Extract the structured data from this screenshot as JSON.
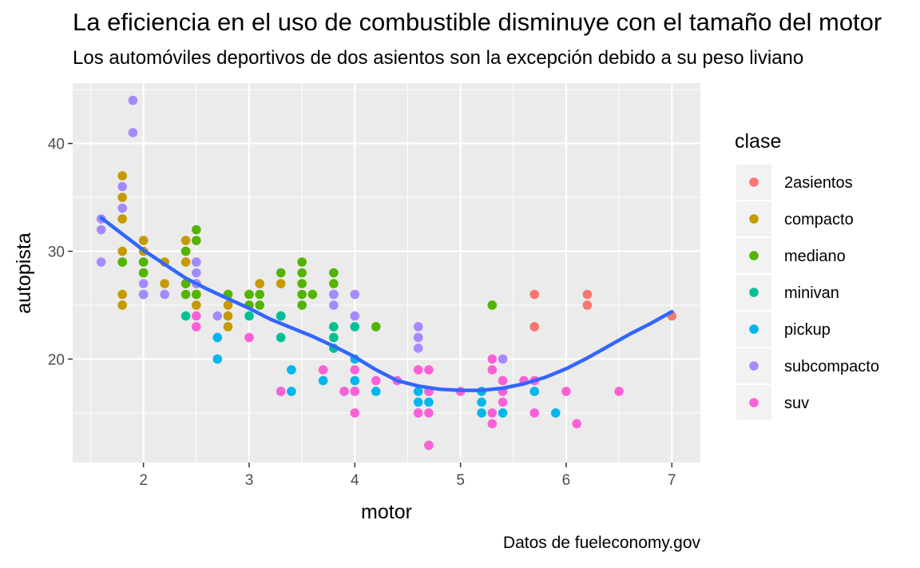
{
  "chart_data": {
    "type": "scatter",
    "title": "La eficiencia en el uso de combustible disminuye con el tamaño del motor",
    "subtitle": "Los automóviles deportivos de dos asientos son la excepción debido a su peso liviano",
    "caption": "Datos de fueleconomy.gov",
    "xlabel": "motor",
    "ylabel": "autopista",
    "legend_title": "clase",
    "legend_position": "right",
    "grid": true,
    "xlim": [
      1.33,
      7.27
    ],
    "ylim": [
      10.4,
      45.6
    ],
    "x_ticks": [
      2,
      3,
      4,
      5,
      6,
      7
    ],
    "y_ticks": [
      20,
      30,
      40
    ],
    "series": [
      {
        "name": "2asientos",
        "color": "#F8766D",
        "points": [
          [
            5.7,
            26
          ],
          [
            5.7,
            23
          ],
          [
            6.2,
            26
          ],
          [
            6.2,
            25
          ],
          [
            7.0,
            24
          ]
        ]
      },
      {
        "name": "compacto",
        "color": "#C49A00",
        "points": [
          [
            1.8,
            37
          ],
          [
            1.8,
            35
          ],
          [
            1.8,
            33
          ],
          [
            1.8,
            30
          ],
          [
            1.8,
            29
          ],
          [
            1.8,
            26
          ],
          [
            1.8,
            25
          ],
          [
            2.0,
            31
          ],
          [
            2.0,
            30
          ],
          [
            2.0,
            29
          ],
          [
            2.0,
            28
          ],
          [
            2.2,
            29
          ],
          [
            2.2,
            27
          ],
          [
            2.4,
            31
          ],
          [
            2.4,
            30
          ],
          [
            2.4,
            29
          ],
          [
            2.4,
            27
          ],
          [
            2.5,
            27
          ],
          [
            2.5,
            26
          ],
          [
            2.5,
            25
          ],
          [
            2.8,
            26
          ],
          [
            2.8,
            25
          ],
          [
            2.8,
            24
          ],
          [
            2.8,
            23
          ],
          [
            3.0,
            26
          ],
          [
            3.1,
            27
          ],
          [
            3.3,
            27
          ]
        ]
      },
      {
        "name": "mediano",
        "color": "#53B400",
        "points": [
          [
            1.8,
            29
          ],
          [
            2.0,
            29
          ],
          [
            2.0,
            28
          ],
          [
            2.0,
            26
          ],
          [
            2.4,
            30
          ],
          [
            2.4,
            27
          ],
          [
            2.4,
            26
          ],
          [
            2.5,
            32
          ],
          [
            2.5,
            31
          ],
          [
            2.5,
            29
          ],
          [
            2.5,
            26
          ],
          [
            2.8,
            26
          ],
          [
            3.0,
            26
          ],
          [
            3.0,
            25
          ],
          [
            3.1,
            26
          ],
          [
            3.1,
            25
          ],
          [
            3.3,
            28
          ],
          [
            3.3,
            24
          ],
          [
            3.5,
            29
          ],
          [
            3.5,
            28
          ],
          [
            3.5,
            27
          ],
          [
            3.5,
            26
          ],
          [
            3.5,
            25
          ],
          [
            3.6,
            26
          ],
          [
            3.8,
            28
          ],
          [
            3.8,
            27
          ],
          [
            3.8,
            26
          ],
          [
            4.2,
            23
          ],
          [
            5.3,
            25
          ]
        ]
      },
      {
        "name": "minivan",
        "color": "#00C094",
        "points": [
          [
            2.4,
            24
          ],
          [
            3.0,
            24
          ],
          [
            3.3,
            24
          ],
          [
            3.3,
            22
          ],
          [
            3.3,
            17
          ],
          [
            3.8,
            23
          ],
          [
            3.8,
            22
          ],
          [
            3.8,
            21
          ],
          [
            4.0,
            23
          ]
        ]
      },
      {
        "name": "pickup",
        "color": "#00B6EB",
        "points": [
          [
            2.7,
            22
          ],
          [
            2.7,
            20
          ],
          [
            3.4,
            19
          ],
          [
            3.4,
            17
          ],
          [
            3.7,
            18
          ],
          [
            3.9,
            17
          ],
          [
            4.0,
            20
          ],
          [
            4.0,
            18
          ],
          [
            4.0,
            17
          ],
          [
            4.2,
            17
          ],
          [
            4.6,
            17
          ],
          [
            4.6,
            16
          ],
          [
            4.6,
            15
          ],
          [
            4.7,
            17
          ],
          [
            4.7,
            16
          ],
          [
            4.7,
            12
          ],
          [
            5.2,
            17
          ],
          [
            5.2,
            16
          ],
          [
            5.2,
            15
          ],
          [
            5.4,
            17
          ],
          [
            5.4,
            15
          ],
          [
            5.7,
            17
          ],
          [
            5.9,
            15
          ]
        ]
      },
      {
        "name": "subcompacto",
        "color": "#A58AFF",
        "points": [
          [
            1.6,
            33
          ],
          [
            1.6,
            32
          ],
          [
            1.6,
            29
          ],
          [
            1.8,
            36
          ],
          [
            1.8,
            34
          ],
          [
            1.9,
            44
          ],
          [
            1.9,
            41
          ],
          [
            2.0,
            27
          ],
          [
            2.0,
            26
          ],
          [
            2.2,
            26
          ],
          [
            2.5,
            29
          ],
          [
            2.5,
            28
          ],
          [
            2.5,
            27
          ],
          [
            2.7,
            24
          ],
          [
            3.8,
            26
          ],
          [
            3.8,
            25
          ],
          [
            4.0,
            26
          ],
          [
            4.0,
            24
          ],
          [
            4.6,
            23
          ],
          [
            4.6,
            22
          ],
          [
            4.6,
            21
          ],
          [
            5.4,
            20
          ]
        ]
      },
      {
        "name": "suv",
        "color": "#FB61D7",
        "points": [
          [
            2.5,
            24
          ],
          [
            2.5,
            23
          ],
          [
            3.0,
            22
          ],
          [
            3.3,
            17
          ],
          [
            3.7,
            19
          ],
          [
            3.9,
            17
          ],
          [
            4.0,
            19
          ],
          [
            4.0,
            17
          ],
          [
            4.0,
            15
          ],
          [
            4.2,
            18
          ],
          [
            4.4,
            18
          ],
          [
            4.6,
            19
          ],
          [
            4.6,
            15
          ],
          [
            4.7,
            19
          ],
          [
            4.7,
            17
          ],
          [
            4.7,
            15
          ],
          [
            4.7,
            12
          ],
          [
            5.0,
            17
          ],
          [
            5.3,
            20
          ],
          [
            5.3,
            19
          ],
          [
            5.3,
            15
          ],
          [
            5.3,
            14
          ],
          [
            5.4,
            18
          ],
          [
            5.4,
            17
          ],
          [
            5.4,
            16
          ],
          [
            5.6,
            18
          ],
          [
            5.7,
            18
          ],
          [
            5.7,
            15
          ],
          [
            6.0,
            17
          ],
          [
            6.1,
            14
          ],
          [
            6.5,
            17
          ]
        ]
      }
    ],
    "smooth": {
      "color": "#3366FF",
      "points": [
        [
          1.6,
          33.1
        ],
        [
          1.8,
          31.6
        ],
        [
          2.0,
          30.1
        ],
        [
          2.2,
          28.8
        ],
        [
          2.4,
          27.5
        ],
        [
          2.6,
          26.5
        ],
        [
          2.8,
          25.6
        ],
        [
          3.0,
          24.7
        ],
        [
          3.2,
          23.7
        ],
        [
          3.4,
          22.9
        ],
        [
          3.6,
          22.1
        ],
        [
          3.8,
          21.2
        ],
        [
          4.0,
          20.2
        ],
        [
          4.2,
          19.0
        ],
        [
          4.4,
          18.0
        ],
        [
          4.6,
          17.5
        ],
        [
          4.8,
          17.2
        ],
        [
          5.0,
          17.1
        ],
        [
          5.2,
          17.1
        ],
        [
          5.4,
          17.3
        ],
        [
          5.6,
          17.7
        ],
        [
          5.8,
          18.3
        ],
        [
          6.0,
          19.1
        ],
        [
          6.2,
          20.1
        ],
        [
          6.4,
          21.2
        ],
        [
          6.6,
          22.3
        ],
        [
          6.8,
          23.3
        ],
        [
          7.0,
          24.4
        ]
      ]
    }
  }
}
